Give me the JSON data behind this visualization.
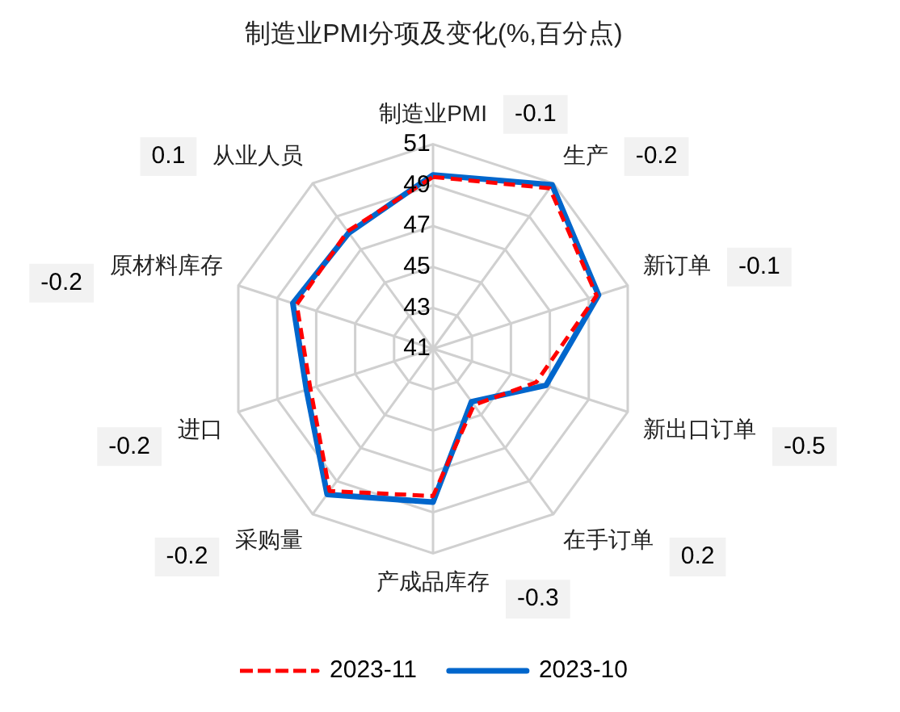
{
  "chart_data": {
    "type": "radar",
    "title": "制造业PMI分项及变化(%,百分点)",
    "categories": [
      "制造业PMI",
      "生产",
      "新订单",
      "新出口订单",
      "在手订单",
      "产成品库存",
      "采购量",
      "进口",
      "原材料库存",
      "从业人员"
    ],
    "series": [
      {
        "name": "2023-11",
        "color": "#ff0000",
        "line_style": "dashed",
        "values": [
          49.4,
          50.7,
          49.4,
          46.3,
          44.4,
          48.2,
          49.6,
          47.3,
          48.0,
          48.1
        ]
      },
      {
        "name": "2023-10",
        "color": "#0066cc",
        "line_style": "solid",
        "values": [
          49.5,
          50.9,
          49.5,
          46.8,
          44.2,
          48.5,
          49.8,
          47.5,
          48.2,
          48.0
        ]
      }
    ],
    "ylim": [
      41,
      51
    ],
    "yticks": [
      41,
      43,
      45,
      47,
      49,
      51
    ],
    "grid": true,
    "legend": "bottom",
    "marker": "none",
    "annotations": [
      "-0.1",
      "-0.2",
      "-0.1",
      "-0.5",
      "0.2",
      "-0.3",
      "-0.2",
      "-0.2",
      "-0.2",
      "0.1"
    ]
  }
}
